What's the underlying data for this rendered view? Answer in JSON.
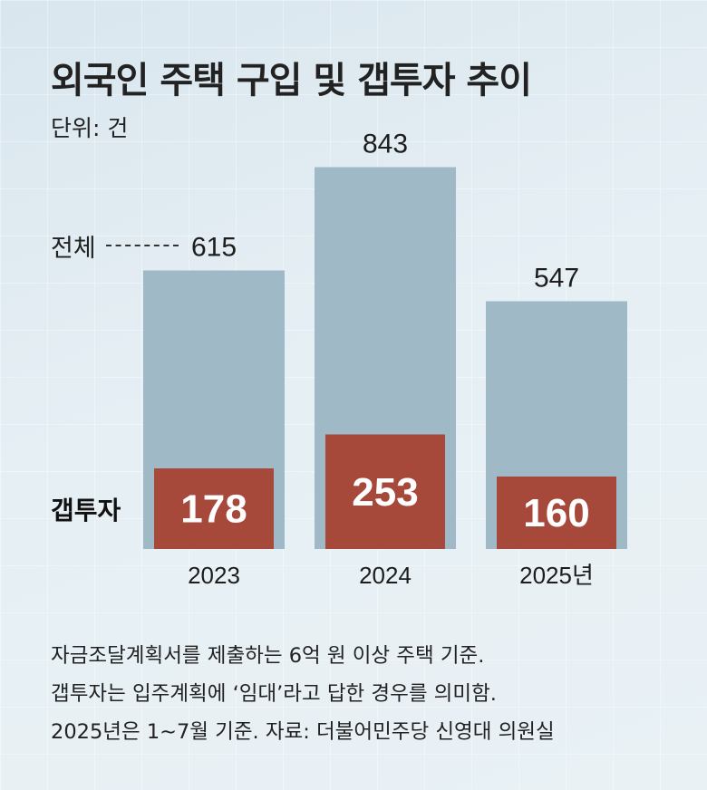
{
  "title": "외국인 주택 구입 및 갭투자 추이",
  "unit_label": "단위: 건",
  "legend": {
    "total": "전체",
    "gap": "갭투자"
  },
  "colors": {
    "total_bar": "#9fb9c6",
    "gap_bar": "#a7493a",
    "gap_text": "#ffffff"
  },
  "chart_data": {
    "type": "bar",
    "categories": [
      "2023",
      "2024",
      "2025년"
    ],
    "series": [
      {
        "name": "전체",
        "values": [
          615,
          843,
          547
        ]
      },
      {
        "name": "갭투자",
        "values": [
          178,
          253,
          160
        ]
      }
    ],
    "ylim": [
      0,
      1000
    ],
    "grid": false
  },
  "notes": [
    "자금조달계획서를 제출하는 6억 원 이상 주택 기준.",
    "갭투자는 입주계획에 ‘임대’라고 답한 경우를 의미함.",
    "2025년은 1∼7월 기준. 자료: 더불어민주당 신영대 의원실"
  ]
}
